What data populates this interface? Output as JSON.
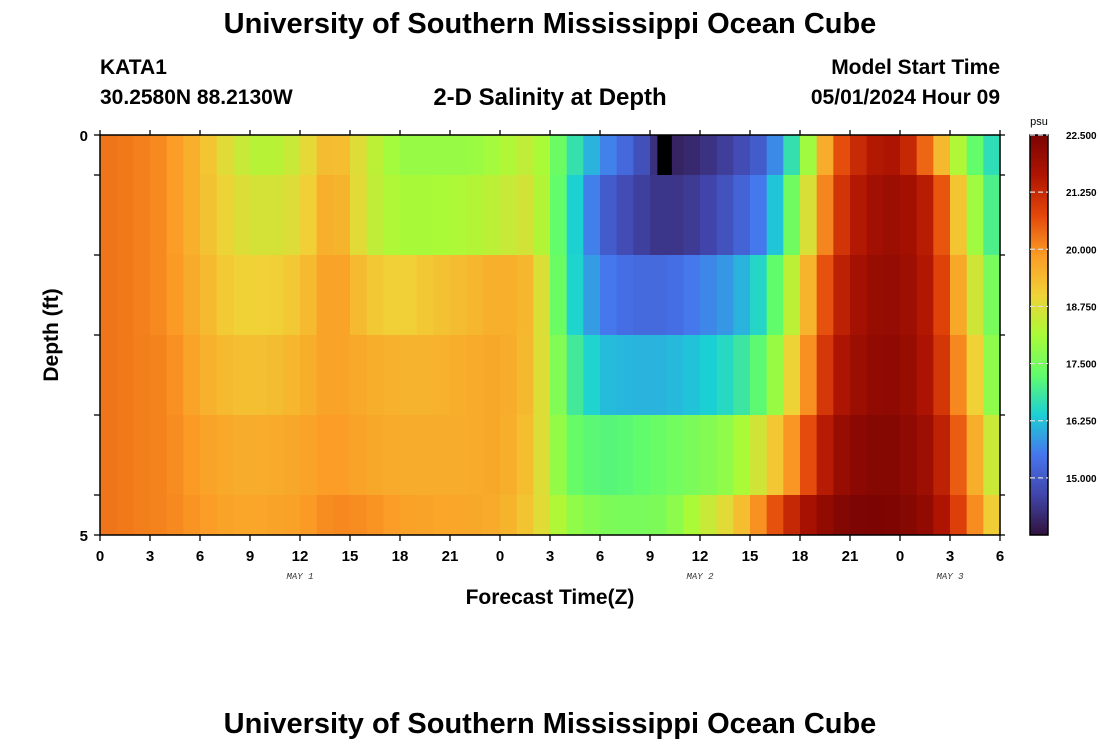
{
  "page": {
    "title": "University of Southern Mississippi Ocean Cube",
    "bottom_title": "University of Southern Mississippi Ocean Cube",
    "station": "KATA1",
    "coordinates": "30.2580N  88.2130W",
    "subtitle": "2-D Salinity at Depth",
    "model_start_label": "Model Start Time",
    "model_start_value": "05/01/2024 Hour 09"
  },
  "chart_data": {
    "type": "heatmap",
    "title": "2-D Salinity at Depth",
    "xlabel": "Forecast Time(Z)",
    "ylabel": "Depth (ft)",
    "xlim": [
      0,
      54
    ],
    "ylim": [
      0,
      5
    ],
    "x_tick_labels": [
      "0",
      "3",
      "6",
      "9",
      "12",
      "15",
      "18",
      "21",
      "0",
      "3",
      "6",
      "9",
      "12",
      "15",
      "18",
      "21",
      "0",
      "3",
      "6"
    ],
    "y_tick_labels": [
      "0",
      "5"
    ],
    "day_labels": [
      {
        "text": "MAY 1",
        "hour": 12
      },
      {
        "text": "MAY 2",
        "hour": 36
      },
      {
        "text": "MAY 3",
        "hour": 51
      }
    ],
    "colorbar": {
      "units": "psu",
      "min": 13.75,
      "max": 22.5,
      "tick_labels": [
        "22.500",
        "21.250",
        "20.000",
        "18.750",
        "17.500",
        "16.250",
        "15.000"
      ],
      "tick_values": [
        22.5,
        21.25,
        20.0,
        18.75,
        17.5,
        16.25,
        15.0
      ]
    },
    "layers": [
      "0-0.5",
      "0.5-1.5",
      "1.5-2.5",
      "2.5-3.5",
      "3.5-4.5",
      "4.5-5"
    ],
    "depth_edges": [
      0,
      0.5,
      1.5,
      2.5,
      3.5,
      4.5,
      5
    ],
    "profile_times": [
      0,
      2,
      4,
      6,
      8,
      10,
      12,
      14,
      16,
      18,
      20,
      22,
      24,
      26,
      28,
      30,
      32,
      34,
      36,
      38,
      40,
      42,
      44,
      46,
      48,
      50,
      52,
      54
    ],
    "salinity": [
      [
        20.3,
        20.2,
        20.0,
        19.4,
        18.6,
        18.2,
        18.6,
        19.6,
        18.5,
        17.9,
        17.9,
        17.9,
        18.1,
        18.5,
        17.0,
        15.8,
        15.1,
        14.0,
        14.2,
        14.6,
        15.2,
        17.2,
        20.4,
        21.5,
        21.7,
        20.0,
        17.6,
        16.3
      ],
      [
        20.3,
        20.2,
        20.0,
        19.4,
        18.8,
        18.6,
        18.8,
        19.8,
        18.5,
        18.1,
        18.1,
        18.2,
        18.4,
        18.7,
        16.8,
        15.2,
        14.6,
        14.3,
        14.5,
        15.0,
        15.7,
        18.0,
        20.8,
        21.8,
        22.0,
        21.3,
        18.5,
        16.5
      ],
      [
        20.3,
        20.2,
        20.0,
        19.5,
        19.0,
        19.0,
        19.2,
        19.9,
        19.2,
        19.0,
        19.2,
        19.4,
        19.6,
        19.4,
        16.7,
        15.6,
        15.3,
        15.3,
        15.6,
        15.9,
        16.7,
        18.9,
        21.2,
        22.0,
        22.1,
        21.4,
        19.1,
        17.0
      ],
      [
        20.3,
        20.2,
        20.1,
        19.6,
        19.3,
        19.3,
        19.5,
        19.8,
        19.6,
        19.5,
        19.5,
        19.6,
        19.7,
        19.3,
        17.1,
        16.2,
        16.1,
        16.1,
        16.3,
        16.6,
        17.4,
        19.5,
        21.5,
        22.1,
        22.2,
        21.5,
        19.6,
        17.2
      ],
      [
        20.3,
        20.2,
        20.1,
        19.8,
        19.6,
        19.6,
        19.7,
        19.9,
        19.7,
        19.6,
        19.6,
        19.6,
        19.7,
        19.2,
        17.4,
        17.1,
        17.2,
        17.4,
        17.6,
        17.9,
        18.8,
        20.3,
        21.9,
        22.3,
        22.3,
        21.8,
        20.1,
        18.0
      ],
      [
        20.3,
        20.2,
        20.1,
        19.9,
        19.7,
        19.7,
        19.8,
        20.1,
        20.0,
        19.8,
        19.7,
        19.7,
        19.6,
        19.1,
        17.9,
        17.6,
        17.5,
        17.6,
        18.3,
        19.0,
        20.3,
        21.6,
        22.3,
        22.5,
        22.4,
        22.0,
        20.5,
        18.6
      ]
    ],
    "missing_marker": {
      "hour": 33.5,
      "layer": "0-0.5"
    }
  }
}
